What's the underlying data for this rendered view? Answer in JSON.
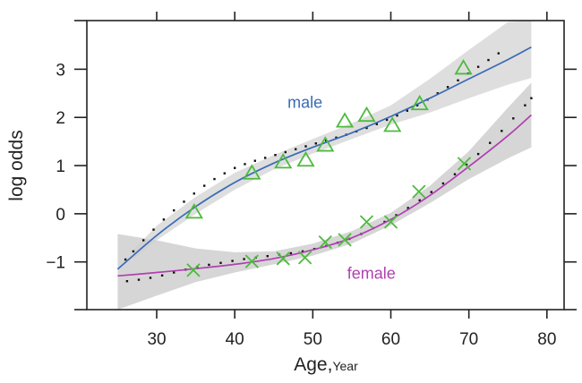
{
  "chart_data": {
    "type": "line",
    "title": "",
    "xlabel": "Age,",
    "xlabel_unit": "Year",
    "ylabel": "log odds",
    "xlim": [
      21.05,
      82.2
    ],
    "ylim": [
      -1.99,
      4.01
    ],
    "x_ticks": [
      30,
      40,
      50,
      60,
      70,
      80
    ],
    "x_tick_labels": [
      "30",
      "40",
      "50",
      "60",
      "70",
      "80"
    ],
    "y_ticks": [
      -1,
      0,
      1,
      2,
      3
    ],
    "y_tick_labels": [
      "−1",
      "0",
      "1",
      "2",
      "3"
    ],
    "grid": false,
    "colors": {
      "male_line": "#3a6bb5",
      "female_line": "#b040b0",
      "points": "#4cbb3c",
      "band_light": "#dcdcdc",
      "band_dark": "#cfcfcf",
      "dots": "#111111",
      "axis": "#222222"
    },
    "series": [
      {
        "name": "male",
        "label": "male",
        "label_at": [
          49,
          2.2
        ],
        "marker": "triangle",
        "points": {
          "x": [
            34.8,
            42.2,
            46.2,
            49.1,
            51.6,
            54.1,
            56.9,
            60.2,
            63.7,
            69.3
          ],
          "y": [
            0.02,
            0.83,
            1.06,
            1.1,
            1.41,
            1.91,
            2.03,
            1.82,
            2.27,
            3.01
          ]
        },
        "fit": {
          "x": [
            25,
            30,
            35,
            40,
            45,
            50,
            55,
            60,
            65,
            70,
            75,
            78
          ],
          "y": [
            -1.15,
            -0.45,
            0.15,
            0.65,
            1.05,
            1.38,
            1.68,
            2.02,
            2.4,
            2.8,
            3.2,
            3.46
          ]
        },
        "band": {
          "x": [
            27,
            30,
            35,
            40,
            45,
            50,
            55,
            60,
            65,
            70,
            75,
            78
          ],
          "lower": [
            -0.95,
            -0.55,
            0.0,
            0.5,
            0.92,
            1.25,
            1.55,
            1.85,
            2.1,
            2.4,
            2.68,
            2.82
          ],
          "upper": [
            -0.75,
            -0.25,
            0.35,
            0.85,
            1.22,
            1.55,
            1.88,
            2.25,
            2.8,
            3.4,
            3.98,
            4.01
          ]
        },
        "dotted": {
          "x": [
            26,
            27,
            28.3,
            29.6,
            30.9,
            32.2,
            33.5,
            34.8,
            36.1,
            37.4,
            38.7,
            40,
            41.3,
            42.6,
            43.9,
            45.2,
            46.5,
            47.8,
            49.1,
            50.4,
            51.7,
            53,
            54.3,
            55.6,
            56.9,
            58.2,
            59.5,
            60.8,
            62.1,
            63.4,
            64.7,
            66,
            67.3,
            68.6,
            69.9,
            71.2,
            72.5,
            73.8
          ],
          "y": [
            -0.95,
            -0.78,
            -0.55,
            -0.33,
            -0.12,
            0.07,
            0.25,
            0.42,
            0.58,
            0.72,
            0.84,
            0.95,
            1.03,
            1.1,
            1.16,
            1.22,
            1.28,
            1.34,
            1.4,
            1.46,
            1.52,
            1.58,
            1.64,
            1.71,
            1.78,
            1.86,
            1.95,
            2.04,
            2.14,
            2.25,
            2.37,
            2.5,
            2.63,
            2.77,
            2.91,
            3.05,
            3.19,
            3.33
          ]
        }
      },
      {
        "name": "female",
        "label": "female",
        "label_at": [
          57.5,
          -1.35
        ],
        "marker": "cross",
        "points": {
          "x": [
            34.7,
            42.2,
            46.2,
            49.0,
            51.6,
            54.1,
            56.9,
            60.0,
            63.6,
            69.4
          ],
          "y": [
            -1.17,
            -0.99,
            -0.93,
            -0.91,
            -0.59,
            -0.54,
            -0.17,
            -0.17,
            0.46,
            1.04
          ]
        },
        "fit": {
          "x": [
            25,
            30,
            35,
            40,
            45,
            50,
            55,
            60,
            65,
            70,
            75,
            78
          ],
          "y": [
            -1.29,
            -1.22,
            -1.14,
            -1.05,
            -0.93,
            -0.75,
            -0.5,
            -0.12,
            0.38,
            0.98,
            1.62,
            2.05
          ]
        },
        "band": {
          "x": [
            25,
            30,
            35,
            40,
            45,
            50,
            55,
            60,
            65,
            70,
            75,
            78
          ],
          "lower": [
            -1.99,
            -1.7,
            -1.42,
            -1.22,
            -1.05,
            -0.87,
            -0.62,
            -0.24,
            0.22,
            0.72,
            1.15,
            1.38
          ],
          "upper": [
            -0.42,
            -0.55,
            -0.72,
            -0.8,
            -0.78,
            -0.62,
            -0.36,
            0.02,
            0.58,
            1.3,
            2.2,
            2.72
          ]
        },
        "dotted": {
          "x": [
            26.2,
            27.7,
            29.2,
            30.7,
            32.2,
            33.7,
            35.2,
            36.7,
            38.2,
            39.7,
            41.2,
            42.7,
            44.2,
            45.7,
            47.2,
            48.7,
            50.2,
            51.7,
            53.2,
            54.7,
            56.2,
            57.7,
            59.2,
            60.7,
            62.2,
            63.7,
            65.2,
            66.7,
            68.2,
            69.7,
            71.2,
            72.7,
            74.2,
            75.7,
            77.2,
            78
          ],
          "y": [
            -1.4,
            -1.37,
            -1.33,
            -1.28,
            -1.22,
            -1.16,
            -1.1,
            -1.06,
            -1.02,
            -0.98,
            -0.94,
            -0.91,
            -0.88,
            -0.85,
            -0.82,
            -0.78,
            -0.73,
            -0.67,
            -0.6,
            -0.52,
            -0.42,
            -0.3,
            -0.17,
            -0.03,
            0.12,
            0.28,
            0.45,
            0.63,
            0.82,
            1.02,
            1.24,
            1.47,
            1.72,
            1.98,
            2.25,
            2.4
          ]
        }
      }
    ]
  }
}
